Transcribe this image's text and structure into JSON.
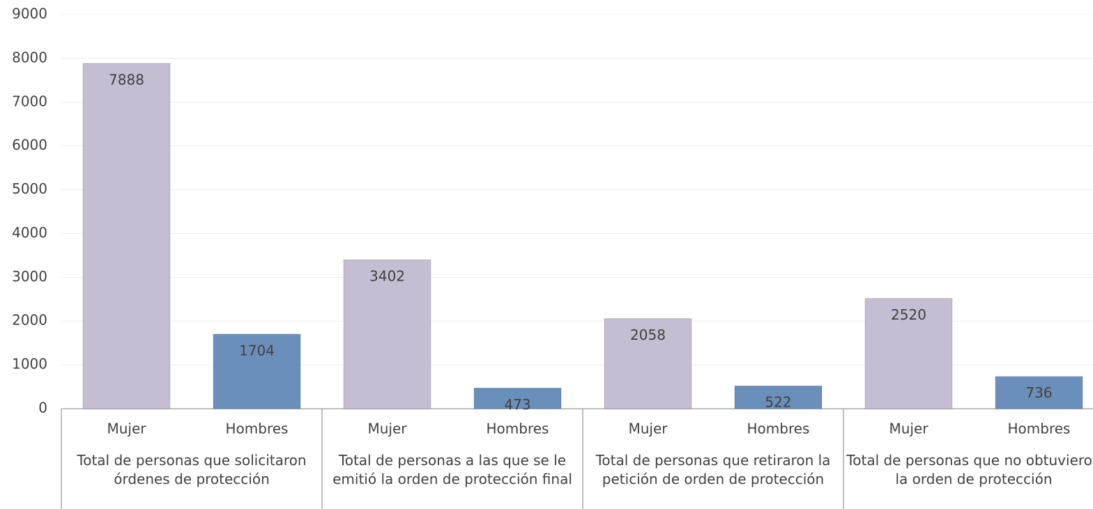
{
  "chart_data": {
    "type": "bar",
    "categories": [
      "Total de personas que solicitaron órdenes de protección",
      "Total de personas a las que se le emitió la orden de protección final",
      "Total de personas que retiraron la petición de orden de protección",
      "Total de personas que no obtuvieron la orden de protección"
    ],
    "series": [
      {
        "name": "Mujer",
        "color": "#c5bdd1",
        "values": [
          7888,
          3402,
          2058,
          2520
        ]
      },
      {
        "name": "Hombres",
        "color": "#6b8fbb",
        "values": [
          1704,
          473,
          522,
          736
        ]
      }
    ],
    "ylim": [
      0,
      9000
    ],
    "yticks": [
      0,
      1000,
      2000,
      3000,
      4000,
      5000,
      6000,
      7000,
      8000,
      9000
    ],
    "grid": true
  }
}
